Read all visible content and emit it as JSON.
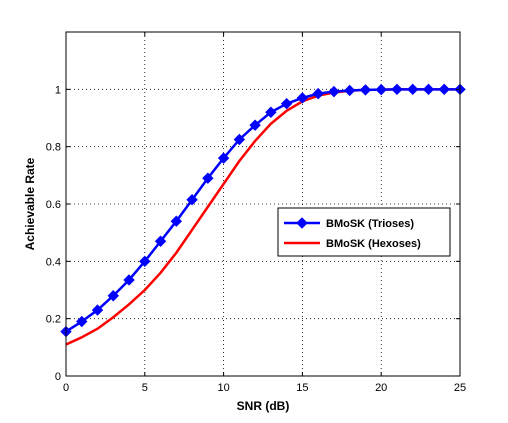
{
  "chart_data": {
    "type": "line",
    "title": "",
    "xlabel": "SNR (dB)",
    "ylabel": "Achievable Rate",
    "xlim": [
      0,
      25
    ],
    "ylim": [
      0,
      1.2
    ],
    "xticks": [
      0,
      5,
      10,
      15,
      20,
      25
    ],
    "yticks": [
      0,
      0.2,
      0.4,
      0.6,
      0.8,
      1
    ],
    "xtick_labels": [
      "0",
      "5",
      "10",
      "15",
      "20",
      "25"
    ],
    "ytick_labels": [
      "0",
      "0.2",
      "0.4",
      "0.6",
      "0.8",
      "1"
    ],
    "grid": true,
    "legend_position": "right",
    "series": [
      {
        "name": "BMoSK (Trioses)",
        "color": "#0000ff",
        "marker": "diamond",
        "x": [
          0,
          1,
          2,
          3,
          4,
          5,
          6,
          7,
          8,
          9,
          10,
          11,
          12,
          13,
          14,
          15,
          16,
          17,
          18,
          19,
          20,
          21,
          22,
          23,
          24,
          25
        ],
        "y": [
          0.155,
          0.19,
          0.23,
          0.28,
          0.335,
          0.4,
          0.47,
          0.54,
          0.615,
          0.69,
          0.76,
          0.825,
          0.875,
          0.92,
          0.95,
          0.97,
          0.985,
          0.992,
          0.996,
          0.998,
          0.999,
          1,
          1,
          1,
          1,
          1
        ]
      },
      {
        "name": "BMoSK (Hexoses)",
        "color": "#ff0000",
        "marker": "none",
        "x": [
          0,
          1,
          2,
          3,
          4,
          5,
          6,
          7,
          8,
          9,
          10,
          11,
          12,
          13,
          14,
          15,
          16,
          17,
          18,
          19,
          20,
          21,
          22,
          23,
          24,
          25
        ],
        "y": [
          0.11,
          0.135,
          0.165,
          0.205,
          0.25,
          0.3,
          0.36,
          0.43,
          0.51,
          0.59,
          0.67,
          0.75,
          0.82,
          0.88,
          0.925,
          0.958,
          0.978,
          0.989,
          0.995,
          0.998,
          0.999,
          1,
          1,
          1,
          1,
          1
        ]
      }
    ]
  }
}
